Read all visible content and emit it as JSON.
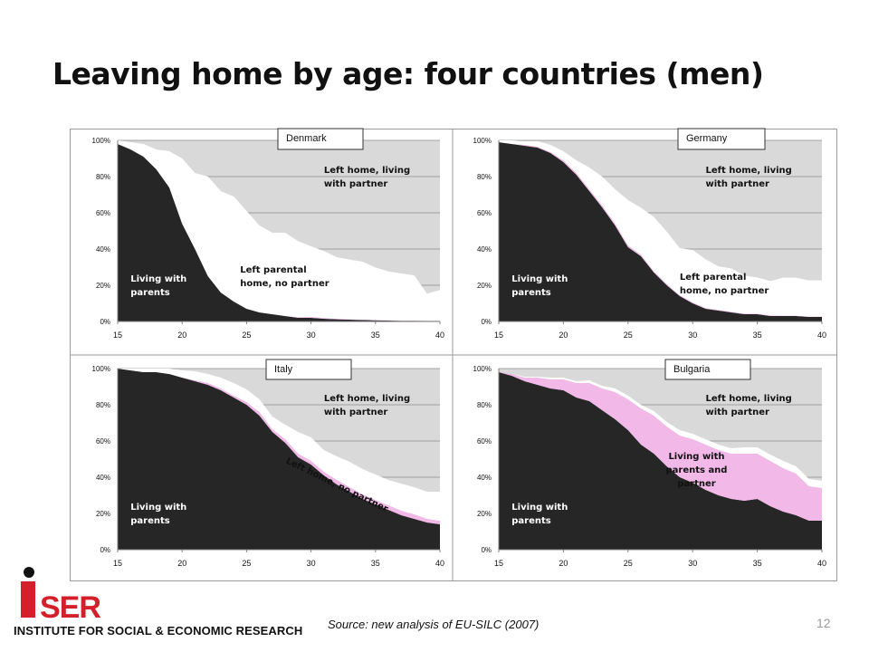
{
  "slide": {
    "title": "Leaving home by age: four countries (men)",
    "source": "Source: new analysis of EU-SILC (2007)",
    "page_number": "12",
    "logo": {
      "wordmark": "iSER",
      "institute": "INSTITUTE FOR SOCIAL & ECONOMIC RESEARCH",
      "accent_color": "#d4202a"
    }
  },
  "colors": {
    "living_with_parents": "#262626",
    "left_parental_home_no_partner": "#ffffff",
    "living_with_parents_and_partner": "#f2b8e8",
    "left_home_living_with_partner": "#d9d9d9"
  },
  "chart_data": [
    {
      "type": "area",
      "title": "Denmark",
      "xlim": [
        15,
        40
      ],
      "ylim": [
        0,
        100
      ],
      "x_ticks": [
        "15",
        "20",
        "25",
        "30",
        "35",
        "40"
      ],
      "y_ticks": [
        "0%",
        "20%",
        "40%",
        "60%",
        "80%",
        "100%"
      ],
      "grid": true,
      "x": [
        15,
        16,
        17,
        18,
        19,
        20,
        21,
        22,
        23,
        24,
        25,
        26,
        27,
        28,
        29,
        30,
        31,
        32,
        33,
        34,
        35,
        36,
        37,
        38,
        39,
        40
      ],
      "series": [
        {
          "name": "Living with parents",
          "values": [
            98,
            95,
            91,
            84,
            74,
            54,
            40,
            25,
            16,
            11,
            7,
            5,
            4,
            3,
            2,
            2,
            1.5,
            1.2,
            1,
            0.8,
            0.6,
            0.5,
            0.4,
            0.4,
            0.3,
            0.3
          ]
        },
        {
          "name": "Living with parents and partner",
          "values": [
            0,
            0,
            0,
            0,
            0,
            0,
            0,
            0,
            0,
            0,
            0,
            0,
            0,
            0,
            0.4,
            0.5,
            0.4,
            0.3,
            0.2,
            0.2,
            0.2,
            0.1,
            0.1,
            0.1,
            0.1,
            0.1
          ]
        },
        {
          "name": "Left parental home, no partner",
          "values": [
            2,
            4,
            7,
            11,
            20,
            36,
            42,
            55,
            56,
            58,
            54,
            48,
            45,
            46,
            42,
            39,
            37,
            34,
            33,
            32,
            29,
            27,
            26,
            25,
            15,
            17
          ]
        }
      ],
      "annotations": [
        {
          "text": [
            "Living with",
            "parents"
          ],
          "x": 16,
          "y": 22
        },
        {
          "text": [
            "Left parental",
            "home, no partner"
          ],
          "x": 24.5,
          "y": 27
        },
        {
          "text": [
            "Left home, living",
            "with partner"
          ],
          "x": 31,
          "y": 82
        }
      ]
    },
    {
      "type": "area",
      "title": "Germany",
      "xlim": [
        15,
        40
      ],
      "ylim": [
        0,
        100
      ],
      "x_ticks": [
        "15",
        "20",
        "25",
        "30",
        "35",
        "40"
      ],
      "y_ticks": [
        "0%",
        "20%",
        "40%",
        "60%",
        "80%",
        "100%"
      ],
      "grid": true,
      "x": [
        15,
        16,
        17,
        18,
        19,
        20,
        21,
        22,
        23,
        24,
        25,
        26,
        27,
        28,
        29,
        30,
        31,
        32,
        33,
        34,
        35,
        36,
        37,
        38,
        39,
        40
      ],
      "series": [
        {
          "name": "Living with parents",
          "values": [
            99,
            98,
            97,
            96,
            93,
            88,
            81,
            72,
            63,
            53,
            41,
            36,
            27,
            20,
            14,
            10,
            7,
            6,
            5,
            4,
            4,
            3,
            3,
            3,
            2.5,
            2.5
          ]
        },
        {
          "name": "Living with parents and partner",
          "values": [
            0,
            0,
            0.5,
            0.5,
            0.5,
            1,
            1,
            1,
            1,
            1,
            1,
            0.8,
            0.7,
            0.6,
            0.5,
            0.5,
            0.4,
            0.4,
            0.3,
            0.3,
            0.3,
            0.3,
            0.2,
            0.2,
            0.2,
            0.2
          ]
        },
        {
          "name": "Left parental home, no partner",
          "values": [
            1,
            2,
            2,
            3,
            4,
            5,
            7,
            12,
            16,
            19,
            25,
            26,
            30,
            29,
            26,
            29,
            27,
            24,
            24,
            21,
            20,
            19,
            21,
            21,
            20,
            20
          ]
        }
      ],
      "annotations": [
        {
          "text": [
            "Living with",
            "parents"
          ],
          "x": 16,
          "y": 22
        },
        {
          "text": [
            "Left parental",
            "home, no partner"
          ],
          "x": 29,
          "y": 23
        },
        {
          "text": [
            "Left home, living",
            "with partner"
          ],
          "x": 31,
          "y": 82
        }
      ]
    },
    {
      "type": "area",
      "title": "Italy",
      "xlim": [
        15,
        40
      ],
      "ylim": [
        0,
        100
      ],
      "x_ticks": [
        "15",
        "20",
        "25",
        "30",
        "35",
        "40"
      ],
      "y_ticks": [
        "0%",
        "20%",
        "40%",
        "60%",
        "80%",
        "100%"
      ],
      "grid": true,
      "x": [
        15,
        16,
        17,
        18,
        19,
        20,
        21,
        22,
        23,
        24,
        25,
        26,
        27,
        28,
        29,
        30,
        31,
        32,
        33,
        34,
        35,
        36,
        37,
        38,
        39,
        40
      ],
      "series": [
        {
          "name": "Living with parents",
          "values": [
            100,
            99,
            98,
            98,
            97,
            95,
            93,
            91,
            88,
            84,
            80,
            74,
            65,
            59,
            51,
            47,
            41,
            36,
            32,
            28,
            25,
            22,
            19,
            17,
            15,
            14
          ]
        },
        {
          "name": "Living with parents and partner",
          "values": [
            0,
            0,
            0,
            0,
            0,
            0,
            0.5,
            1,
            1,
            1,
            1.5,
            2,
            1.5,
            2,
            2,
            2,
            2,
            2.5,
            2.5,
            2.5,
            2.5,
            2.5,
            2.5,
            2.5,
            2,
            2
          ]
        },
        {
          "name": "Left parental home, no partner",
          "values": [
            0,
            1,
            2,
            2,
            3,
            4,
            5,
            5,
            6,
            7,
            7,
            7,
            7,
            8,
            12,
            13,
            12,
            13,
            14,
            14,
            14,
            14,
            15,
            15,
            15,
            16
          ]
        }
      ],
      "annotations": [
        {
          "text": [
            "Living with",
            "parents"
          ],
          "x": 16,
          "y": 22
        },
        {
          "text": [
            "Left home, no partner"
          ],
          "x": 28,
          "y": 48,
          "angle": 26
        },
        {
          "text": [
            "Left home, living",
            "with partner"
          ],
          "x": 31,
          "y": 82
        }
      ]
    },
    {
      "type": "area",
      "title": "Bulgaria",
      "xlim": [
        15,
        40
      ],
      "ylim": [
        0,
        100
      ],
      "x_ticks": [
        "15",
        "20",
        "25",
        "30",
        "35",
        "40"
      ],
      "y_ticks": [
        "0%",
        "20%",
        "40%",
        "60%",
        "80%",
        "100%"
      ],
      "grid": true,
      "x": [
        15,
        16,
        17,
        18,
        19,
        20,
        21,
        22,
        23,
        24,
        25,
        26,
        27,
        28,
        29,
        30,
        31,
        32,
        33,
        34,
        35,
        36,
        37,
        38,
        39,
        40
      ],
      "series": [
        {
          "name": "Living with parents",
          "values": [
            98,
            96,
            93,
            91,
            89,
            88,
            84,
            82,
            77,
            72,
            66,
            58,
            53,
            46,
            40,
            37,
            33,
            30,
            28,
            27,
            28,
            24,
            21,
            19,
            16,
            16
          ]
        },
        {
          "name": "Living with parents and partner",
          "values": [
            0,
            1,
            2,
            4,
            5,
            6,
            8,
            10,
            12,
            15,
            17,
            20,
            21,
            22,
            23,
            24,
            25,
            25,
            25,
            26,
            25,
            25,
            24,
            23,
            19,
            18
          ]
        },
        {
          "name": "Left parental home, no partner",
          "values": [
            0,
            0,
            0.5,
            0.5,
            1,
            1,
            1,
            1.5,
            1.5,
            2,
            2,
            2,
            2.5,
            2.5,
            3,
            3,
            3,
            3,
            3,
            3.5,
            3.5,
            3.5,
            4,
            4,
            4,
            4
          ]
        }
      ],
      "annotations": [
        {
          "text": [
            "Living with",
            "parents"
          ],
          "x": 16,
          "y": 22
        },
        {
          "text": [
            "Living with",
            "parents and",
            "partner"
          ],
          "x": 30.3,
          "y": 50,
          "anchor": "middle"
        },
        {
          "text": [
            "Left home, living",
            "with partner"
          ],
          "x": 31,
          "y": 82
        }
      ]
    }
  ]
}
